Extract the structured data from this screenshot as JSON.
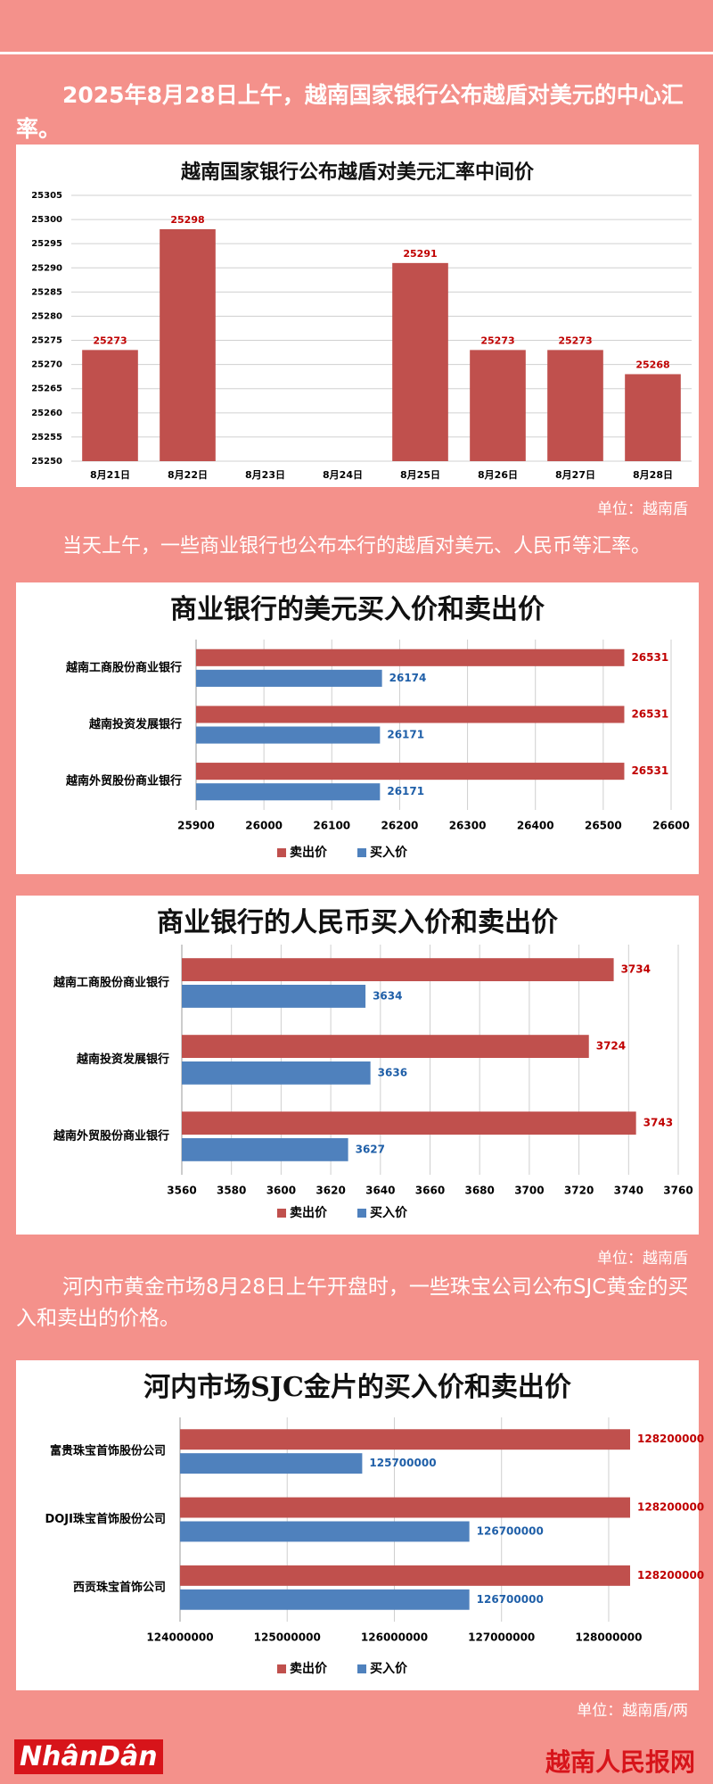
{
  "texts": {
    "p1": "2025年8月28日上午，越南国家银行公布越盾对美元的中心汇率。",
    "unit1": "单位：越南盾",
    "p2": "当天上午，一些商业银行也公布本行的越盾对美元、人民币等汇率。",
    "unit2": "单位：越南盾",
    "p3": "河内市黄金市场8月28日上午开盘时，一些珠宝公司公布SJC黄金的买入和卖出的价格。",
    "unit3": "单位：越南盾/两"
  },
  "footer": {
    "logo": "NhânDân",
    "site": "越南人民报网"
  },
  "chart_data": [
    {
      "type": "bar",
      "title": "越南国家银行公布越盾对美元汇率中间价",
      "categories": [
        "8月21日",
        "8月22日",
        "8月23日",
        "8月24日",
        "8月25日",
        "8月26日",
        "8月27日",
        "8月28日"
      ],
      "values": [
        25273,
        25298,
        null,
        null,
        25291,
        25273,
        25273,
        25268
      ],
      "color": "#c0504d",
      "label_color": "#c00000",
      "ylim": [
        25250,
        25305
      ],
      "yticks": [
        25250,
        25255,
        25260,
        25265,
        25270,
        25275,
        25280,
        25285,
        25290,
        25295,
        25300,
        25305
      ],
      "grid": true
    },
    {
      "type": "hbar",
      "title": "商业银行的美元买入价和卖出价",
      "categories": [
        "越南工商股份商业银行",
        "越南投资发展银行",
        "越南外贸股份商业银行"
      ],
      "series": [
        {
          "name": "卖出价",
          "color": "#c0504d",
          "label_color": "#c00000",
          "values": [
            26531,
            26531,
            26531
          ]
        },
        {
          "name": "买入价",
          "color": "#4f81bd",
          "label_color": "#1f5fa8",
          "values": [
            26174,
            26171,
            26171
          ]
        }
      ],
      "xlim": [
        25900,
        26600
      ],
      "xticks": [
        25900,
        26000,
        26100,
        26200,
        26300,
        26400,
        26500,
        26600
      ],
      "grid": true,
      "legend": "bottom"
    },
    {
      "type": "hbar",
      "title": "商业银行的人民币买入价和卖出价",
      "categories": [
        "越南工商股份商业银行",
        "越南投资发展银行",
        "越南外贸股份商业银行"
      ],
      "series": [
        {
          "name": "卖出价",
          "color": "#c0504d",
          "label_color": "#c00000",
          "values": [
            3734,
            3724,
            3743
          ]
        },
        {
          "name": "买入价",
          "color": "#4f81bd",
          "label_color": "#1f5fa8",
          "values": [
            3634,
            3636,
            3627
          ]
        }
      ],
      "xlim": [
        3560,
        3760
      ],
      "xticks": [
        3560,
        3580,
        3600,
        3620,
        3640,
        3660,
        3680,
        3700,
        3720,
        3740,
        3760
      ],
      "grid": true,
      "legend": "bottom"
    },
    {
      "type": "hbar",
      "title": "河内市场SJC金片的买入价和卖出价",
      "categories": [
        "富贵珠宝首饰股份公司",
        "DOJI珠宝首饰股份公司",
        "西贡珠宝首饰公司"
      ],
      "series": [
        {
          "name": "卖出价",
          "color": "#c0504d",
          "label_color": "#c00000",
          "values": [
            128200000,
            128200000,
            128200000
          ]
        },
        {
          "name": "买入价",
          "color": "#4f81bd",
          "label_color": "#1f5fa8",
          "values": [
            125700000,
            126700000,
            126700000
          ]
        }
      ],
      "xlim": [
        124000000,
        128200000
      ],
      "xticks": [
        124000000,
        125000000,
        126000000,
        127000000,
        128000000
      ],
      "grid": true,
      "legend": "bottom"
    }
  ]
}
